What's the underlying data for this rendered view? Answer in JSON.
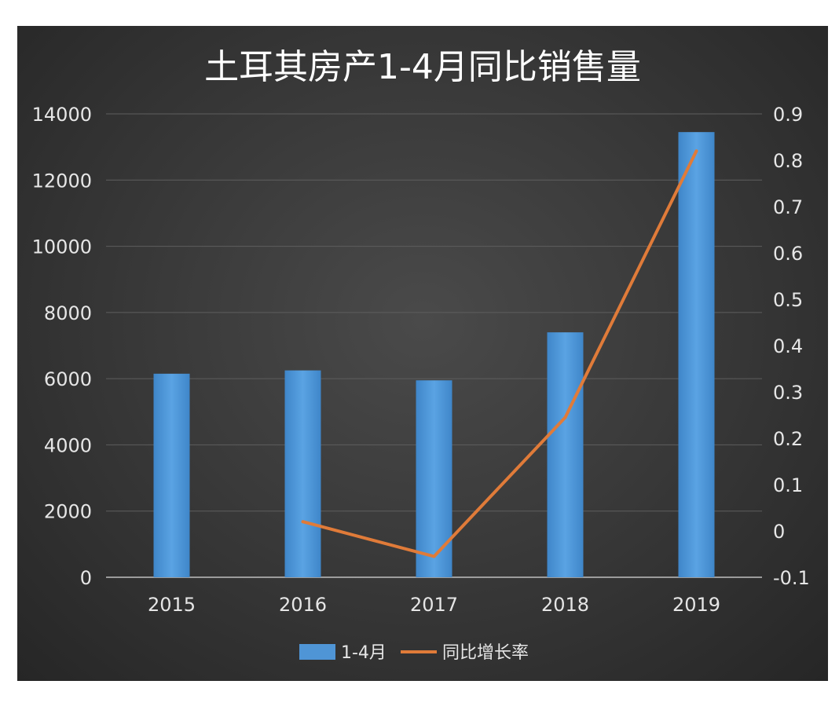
{
  "chart_data": {
    "type": "bar",
    "title": "土耳其房产1-4月同比销售量",
    "categories": [
      "2015",
      "2016",
      "2017",
      "2018",
      "2019"
    ],
    "series": [
      {
        "name": "1-4月",
        "type": "bar",
        "axis": "left",
        "values": [
          6150,
          6250,
          5950,
          7400,
          13450
        ],
        "color": "#4f95d6"
      },
      {
        "name": "同比增长率",
        "type": "line",
        "axis": "right",
        "values": [
          null,
          0.02,
          -0.055,
          0.245,
          0.82
        ],
        "color": "#e07b39"
      }
    ],
    "y_left": {
      "ylim": [
        0,
        14000
      ],
      "ticks": [
        "0",
        "2000",
        "4000",
        "6000",
        "8000",
        "10000",
        "12000",
        "14000"
      ]
    },
    "y_right": {
      "ylim": [
        -0.1,
        0.9
      ],
      "ticks": [
        "-0.1",
        "0",
        "0.1",
        "0.2",
        "0.3",
        "0.4",
        "0.5",
        "0.6",
        "0.7",
        "0.8",
        "0.9"
      ]
    },
    "grid": true,
    "legend": "bottom-center"
  }
}
